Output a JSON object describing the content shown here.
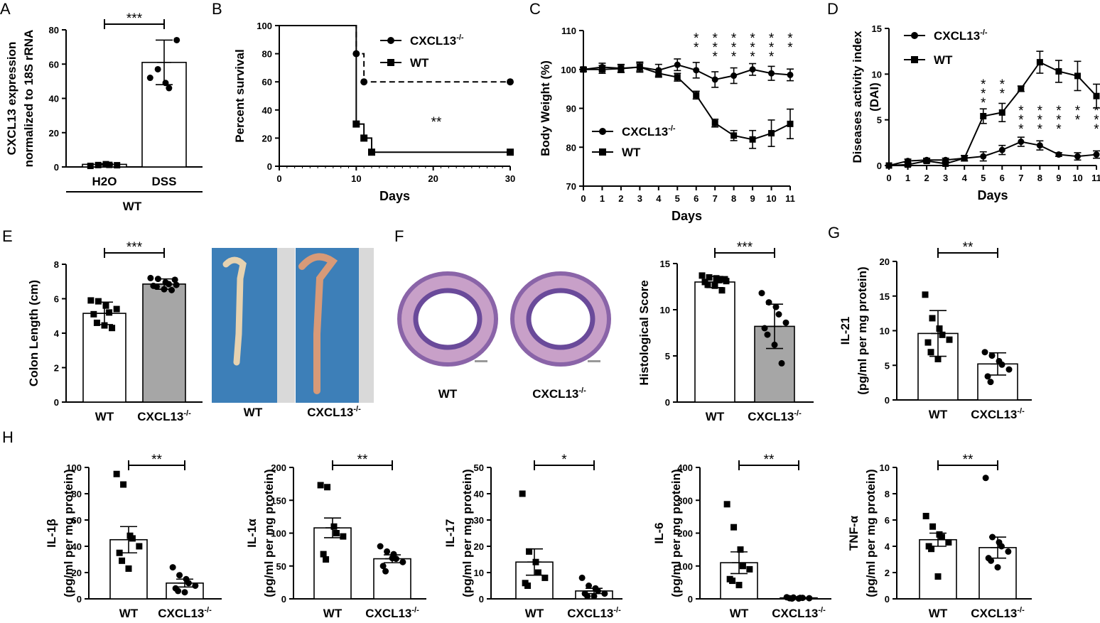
{
  "panel_letters": [
    "A",
    "B",
    "C",
    "D",
    "E",
    "F",
    "G",
    "H"
  ],
  "colors": {
    "bar_gray": "#a6a6a6",
    "bar_white": "#ffffff",
    "ink": "#000000",
    "tray_blue": "#3d7fb8",
    "tissue_pink": "#c8a0c8",
    "tissue_purple": "#6a4a9a"
  },
  "chart_data": [
    {
      "id": "A",
      "type": "bar",
      "ylabel": [
        "CXCL13 expression",
        "normalized to 18S rRNA"
      ],
      "categories": [
        "H2O",
        "DSS"
      ],
      "values": [
        1.5,
        61
      ],
      "errors": [
        0.5,
        13
      ],
      "ylim": [
        0,
        80
      ],
      "yticks": [
        0,
        20,
        40,
        60,
        80
      ],
      "group_label": "WT",
      "significance": "***",
      "points": [
        [
          0.6,
          1.1,
          1.6,
          1.2,
          1.0
        ],
        [
          52,
          57,
          49,
          46,
          74
        ]
      ]
    },
    {
      "id": "B",
      "type": "line",
      "xlabel": "Days",
      "ylabel": "Percent survival",
      "xlim": [
        0,
        30
      ],
      "ylim": [
        0,
        100
      ],
      "xticks": [
        0,
        10,
        20,
        30
      ],
      "yticks": [
        0,
        20,
        40,
        60,
        80,
        100
      ],
      "annotation": "**",
      "series": [
        {
          "name": "CXCL13",
          "sup": "-/-",
          "style": "dashed",
          "marker": "circle",
          "steps": [
            [
              0,
              100
            ],
            [
              10,
              80
            ],
            [
              11,
              60
            ],
            [
              30,
              60
            ]
          ]
        },
        {
          "name": "WT",
          "sup": "",
          "style": "solid",
          "marker": "square",
          "steps": [
            [
              0,
              100
            ],
            [
              10,
              30
            ],
            [
              11,
              20
            ],
            [
              12,
              10
            ],
            [
              30,
              10
            ]
          ]
        }
      ]
    },
    {
      "id": "C",
      "type": "line",
      "xlabel": "Days",
      "ylabel": "Body Weight (%)",
      "xlim": [
        0,
        11
      ],
      "ylim": [
        70,
        110
      ],
      "xticks": [
        0,
        1,
        2,
        3,
        4,
        5,
        6,
        7,
        8,
        9,
        10,
        11
      ],
      "yticks": [
        70,
        80,
        90,
        100,
        110
      ],
      "series": [
        {
          "name": "CXCL13",
          "sup": "-/-",
          "marker": "circle",
          "x": [
            0,
            1,
            2,
            3,
            4,
            5,
            6,
            7,
            8,
            9,
            10,
            11
          ],
          "y": [
            100,
            100.6,
            100.3,
            100.6,
            99.8,
            101.2,
            99.8,
            97.4,
            98.4,
            100,
            99,
            98.6
          ],
          "err": [
            0.5,
            1,
            1,
            1.3,
            1.5,
            1.5,
            2,
            2,
            2,
            1.5,
            1.8,
            1.5
          ]
        },
        {
          "name": "WT",
          "sup": "",
          "marker": "square",
          "x": [
            0,
            1,
            2,
            3,
            4,
            5,
            6,
            7,
            8,
            9,
            10,
            11
          ],
          "y": [
            100,
            100,
            100.2,
            100.6,
            99,
            98,
            93.4,
            86.2,
            83,
            82,
            83.6,
            86
          ],
          "err": [
            0.5,
            1,
            1,
            1,
            1,
            1,
            1,
            1,
            1.3,
            2.3,
            3.4,
            3.8
          ]
        }
      ],
      "sig_x": [
        6,
        7,
        8,
        9,
        10,
        11
      ],
      "sig": [
        "**",
        "***",
        "***",
        "***",
        "***",
        "**"
      ]
    },
    {
      "id": "D",
      "type": "line",
      "xlabel": "Days",
      "ylabel": [
        "Diseases activity index",
        "(DAI)"
      ],
      "xlim": [
        0,
        11
      ],
      "ylim": [
        0,
        15
      ],
      "xticks": [
        0,
        1,
        2,
        3,
        4,
        5,
        6,
        7,
        8,
        9,
        10,
        11
      ],
      "yticks": [
        0,
        5,
        10,
        15
      ],
      "series": [
        {
          "name": "CXCL13",
          "sup": "-/-",
          "marker": "circle",
          "x": [
            0,
            1,
            2,
            3,
            4,
            5,
            6,
            7,
            8,
            9,
            10,
            11
          ],
          "y": [
            0,
            0.5,
            0.6,
            0.6,
            0.8,
            1,
            1.7,
            2.6,
            2.2,
            1.2,
            1,
            1.2
          ],
          "err": [
            0,
            0.2,
            0.2,
            0.2,
            0.3,
            0.5,
            0.5,
            0.5,
            0.5,
            0.2,
            0.4,
            0.4
          ]
        },
        {
          "name": "WT",
          "sup": "",
          "marker": "square",
          "x": [
            0,
            1,
            2,
            3,
            4,
            5,
            6,
            7,
            8,
            9,
            10,
            11
          ],
          "y": [
            0,
            0.1,
            0.5,
            0.2,
            0.8,
            5.4,
            5.8,
            8.4,
            11.3,
            10.3,
            9.8,
            7.6
          ],
          "err": [
            0,
            0.2,
            0.2,
            0.2,
            0.3,
            0.8,
            1,
            0.3,
            1.2,
            1.2,
            1.6,
            1.3
          ]
        }
      ],
      "sig_x": [
        5,
        6,
        7,
        8,
        9,
        10,
        11
      ],
      "sig_upper": [
        "***",
        "**",
        "",
        "",
        "",
        "",
        ""
      ],
      "sig_lower": [
        "",
        "",
        "***",
        "***",
        "***",
        "**",
        "***"
      ]
    },
    {
      "id": "E",
      "type": "bar",
      "ylabel": "Colon Length (cm)",
      "categories": [
        "WT",
        "CXCL13"
      ],
      "cat_sup": [
        "",
        "-/-"
      ],
      "values": [
        5.15,
        6.85
      ],
      "errors": [
        0.65,
        0.3
      ],
      "fills": [
        "#ffffff",
        "#a6a6a6"
      ],
      "ylim": [
        0,
        8
      ],
      "yticks": [
        0,
        2,
        4,
        6,
        8
      ],
      "significance": "***",
      "points": [
        [
          5.9,
          5.85,
          5.6,
          5.2,
          5.4,
          5.1,
          4.6,
          4.45,
          4.3
        ],
        [
          7.2,
          7.15,
          6.95,
          6.85,
          6.8,
          6.75,
          6.7,
          6.55,
          6.5,
          7.1
        ]
      ],
      "photo_labels": [
        "WT",
        "CXCL13"
      ]
    },
    {
      "id": "F",
      "type": "bar",
      "ylabel": "Histological Score",
      "categories": [
        "WT",
        "CXCL13"
      ],
      "cat_sup": [
        "",
        "-/-"
      ],
      "values": [
        13,
        8.2
      ],
      "errors": [
        0.6,
        2.4
      ],
      "fills": [
        "#ffffff",
        "#a6a6a6"
      ],
      "ylim": [
        0,
        15
      ],
      "yticks": [
        0,
        5,
        10,
        15
      ],
      "significance": "***",
      "points": [
        [
          13.7,
          13.5,
          13.4,
          13.2,
          13.1,
          13,
          12.7,
          12.6,
          12.1,
          13.3
        ],
        [
          11.8,
          10.8,
          10.3,
          9.5,
          8.6,
          8,
          7.3,
          6.2,
          4.2
        ]
      ],
      "histology_labels": [
        "WT",
        "CXCL13"
      ]
    },
    {
      "id": "G",
      "type": "bar",
      "ylabel": [
        "IL-21",
        "(pg/ml  per mg protein)"
      ],
      "categories": [
        "WT",
        "CXCL13"
      ],
      "cat_sup": [
        "",
        "-/-"
      ],
      "values": [
        9.6,
        5.2
      ],
      "errors": [
        3.3,
        1.6
      ],
      "ylim": [
        0,
        20
      ],
      "yticks": [
        0,
        5,
        10,
        15,
        20
      ],
      "significance": "**",
      "points": [
        [
          15.2,
          11.8,
          10.3,
          9.4,
          8.7,
          8.3,
          6.9,
          5.9
        ],
        [
          6.9,
          6.4,
          5.6,
          5.1,
          4.4,
          3.4,
          2.6
        ]
      ]
    },
    {
      "id": "H1",
      "type": "bar",
      "ylabel": [
        "IL-1β",
        "(pg/ml per mg protein)"
      ],
      "categories": [
        "WT",
        "CXCL13"
      ],
      "cat_sup": [
        "",
        "-/-"
      ],
      "values": [
        45,
        12
      ],
      "errors": [
        10,
        3
      ],
      "ylim": [
        0,
        100
      ],
      "yticks": [
        0,
        20,
        40,
        60,
        80,
        100
      ],
      "significance": "**",
      "points": [
        [
          95,
          87,
          48,
          46,
          40,
          35,
          29,
          23
        ],
        [
          24,
          18,
          15,
          12,
          10,
          8,
          6,
          5
        ]
      ]
    },
    {
      "id": "H2",
      "type": "bar",
      "ylabel": [
        "IL-1α",
        "(pg/ml per mg protein)"
      ],
      "categories": [
        "WT",
        "CXCL13"
      ],
      "cat_sup": [
        "",
        "-/-"
      ],
      "values": [
        108,
        61
      ],
      "errors": [
        15,
        6
      ],
      "ylim": [
        0,
        200
      ],
      "yticks": [
        0,
        50,
        100,
        150,
        200
      ],
      "significance": "**",
      "points": [
        [
          173,
          170,
          110,
          100,
          95,
          68,
          60
        ],
        [
          80,
          72,
          68,
          61,
          56,
          50,
          42,
          62
        ]
      ]
    },
    {
      "id": "H3",
      "type": "bar",
      "ylabel": [
        "IL-17",
        "(pg/ml per mg protein)"
      ],
      "categories": [
        "WT",
        "CXCL13"
      ],
      "cat_sup": [
        "",
        "-/-"
      ],
      "values": [
        14,
        3
      ],
      "errors": [
        5,
        1
      ],
      "ylim": [
        0,
        50
      ],
      "yticks": [
        0,
        10,
        20,
        30,
        40,
        50
      ],
      "significance": "*",
      "points": [
        [
          40,
          18,
          14,
          10,
          8,
          6,
          5
        ],
        [
          8,
          5,
          4,
          3,
          2,
          2,
          1,
          1
        ]
      ]
    },
    {
      "id": "H4",
      "type": "bar",
      "ylabel": [
        "IL-6",
        "(pg/ml per mg protein)"
      ],
      "categories": [
        "WT",
        "CXCL13"
      ],
      "cat_sup": [
        "",
        "-/-"
      ],
      "values": [
        110,
        3
      ],
      "errors": [
        33,
        1
      ],
      "ylim": [
        0,
        400
      ],
      "yticks": [
        0,
        100,
        200,
        300,
        400
      ],
      "significance": "**",
      "points": [
        [
          288,
          218,
          150,
          100,
          90,
          60,
          55,
          42
        ],
        [
          5,
          4,
          3,
          3,
          2,
          2,
          1,
          1
        ]
      ]
    },
    {
      "id": "H5",
      "type": "bar",
      "ylabel": [
        "TNF-α",
        "(pg/ml per mg protein)"
      ],
      "categories": [
        "WT",
        "CXCL13"
      ],
      "cat_sup": [
        "",
        "-/-"
      ],
      "values": [
        4.5,
        3.9
      ],
      "errors": [
        0.5,
        0.8
      ],
      "ylim": [
        0,
        10
      ],
      "yticks": [
        0,
        2,
        4,
        6,
        8,
        10
      ],
      "significance": "**",
      "points": [
        [
          6.3,
          5.5,
          4.9,
          4.7,
          4.3,
          4.0,
          3.8,
          1.7
        ],
        [
          9.2,
          4.7,
          4.3,
          4.0,
          3.6,
          3.1,
          2.9,
          2.4
        ]
      ]
    }
  ]
}
